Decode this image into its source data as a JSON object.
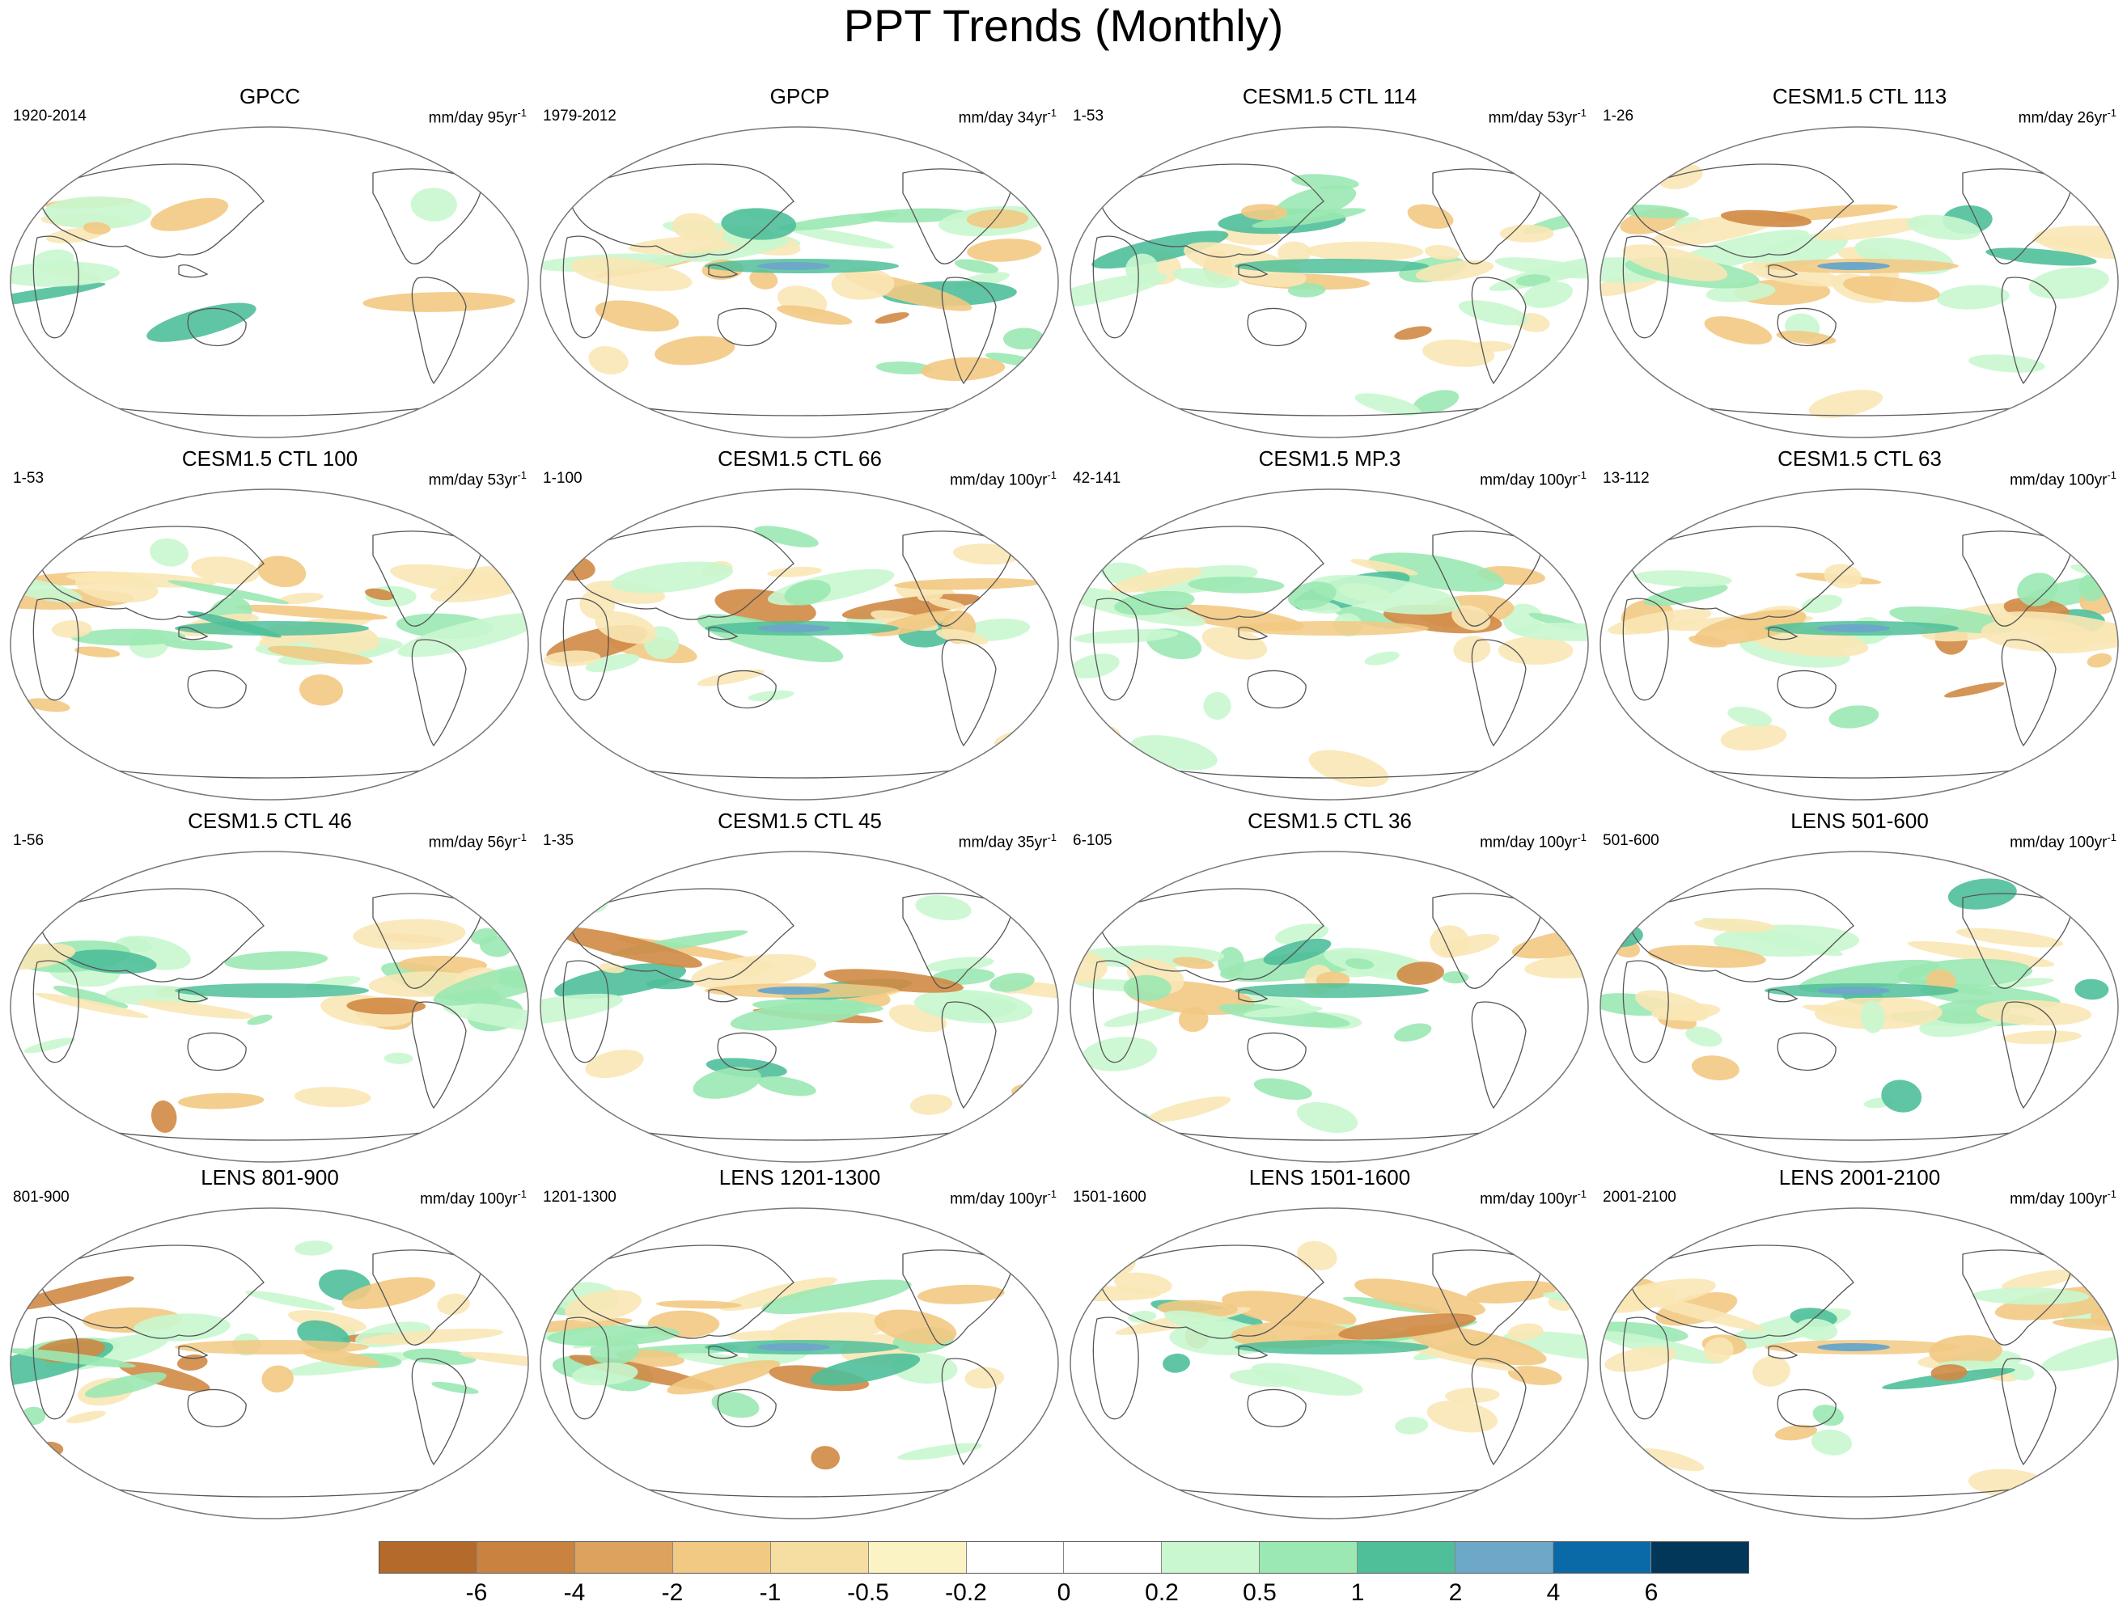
{
  "figure": {
    "title": "PPT Trends (Monthly)"
  },
  "palette": {
    "dry_strong": "#b36a2a",
    "dry_mid": "#d08a45",
    "dry_light": "#f2c983",
    "dry_faint": "#f9e7b5",
    "wet_faint": "#c9f7cf",
    "wet_light": "#9be8b3",
    "wet_mid": "#4fbf9a",
    "wet_strong": "#6ea8c8",
    "outline": "#555555"
  },
  "panels": [
    {
      "title": "GPCC",
      "period": "1920-2014",
      "units_prefix": "mm/day 95yr",
      "units_exp": "-1"
    },
    {
      "title": "GPCP",
      "period": "1979-2012",
      "units_prefix": "mm/day 34yr",
      "units_exp": "-1"
    },
    {
      "title": "CESM1.5 CTL 114",
      "period": "1-53",
      "units_prefix": "mm/day 53yr",
      "units_exp": "-1"
    },
    {
      "title": "CESM1.5 CTL 113",
      "period": "1-26",
      "units_prefix": "mm/day 26yr",
      "units_exp": "-1"
    },
    {
      "title": "CESM1.5 CTL 100",
      "period": "1-53",
      "units_prefix": "mm/day 53yr",
      "units_exp": "-1"
    },
    {
      "title": "CESM1.5 CTL 66",
      "period": "1-100",
      "units_prefix": "mm/day 100yr",
      "units_exp": "-1"
    },
    {
      "title": "CESM1.5 MP.3",
      "period": "42-141",
      "units_prefix": "mm/day 100yr",
      "units_exp": "-1"
    },
    {
      "title": "CESM1.5 CTL 63",
      "period": "13-112",
      "units_prefix": "mm/day 100yr",
      "units_exp": "-1"
    },
    {
      "title": "CESM1.5 CTL 46",
      "period": "1-56",
      "units_prefix": "mm/day 56yr",
      "units_exp": "-1"
    },
    {
      "title": "CESM1.5 CTL 45",
      "period": "1-35",
      "units_prefix": "mm/day 35yr",
      "units_exp": "-1"
    },
    {
      "title": "CESM1.5 CTL 36",
      "period": "6-105",
      "units_prefix": "mm/day 100yr",
      "units_exp": "-1"
    },
    {
      "title": "LENS 501-600",
      "period": "501-600",
      "units_prefix": "mm/day 100yr",
      "units_exp": "-1"
    },
    {
      "title": "LENS 801-900",
      "period": "801-900",
      "units_prefix": "mm/day 100yr",
      "units_exp": "-1"
    },
    {
      "title": "LENS 1201-1300",
      "period": "1201-1300",
      "units_prefix": "mm/day 100yr",
      "units_exp": "-1"
    },
    {
      "title": "LENS 1501-1600",
      "period": "1501-1600",
      "units_prefix": "mm/day 100yr",
      "units_exp": "-1"
    },
    {
      "title": "LENS 2001-2100",
      "period": "2001-2100",
      "units_prefix": "mm/day 100yr",
      "units_exp": "-1"
    }
  ],
  "colorbar": {
    "colors": [
      "#b36a2a",
      "#c9823f",
      "#dca25e",
      "#f2c983",
      "#f6dea2",
      "#fcf3c4",
      "#ffffff",
      "#ffffff",
      "#c9f7cf",
      "#9be8b3",
      "#4fbf9a",
      "#6ea8c8",
      "#0a6aa8",
      "#03375a"
    ],
    "labels": [
      "-6",
      "-4",
      "-2",
      "-1",
      "-0.5",
      "-0.2",
      "0",
      "0.2",
      "0.5",
      "1",
      "2",
      "4",
      "6"
    ]
  }
}
